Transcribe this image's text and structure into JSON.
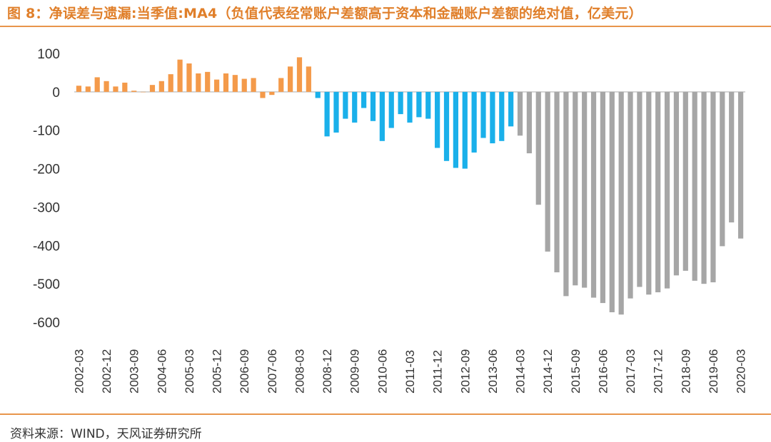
{
  "header": {
    "title": "图 8：净误差与遗漏:当季值:MA4（负值代表经常账户差额高于资本和金融账户差额的绝对值，亿美元）"
  },
  "footer": {
    "source": "资料来源：WIND，天风证券研究所"
  },
  "colors": {
    "accent": "#e8954b",
    "positive": "#f49a4a",
    "negative_mid": "#1ab0ea",
    "negative_late": "#a6a6a6"
  },
  "chart_data": {
    "type": "bar",
    "title": "",
    "xlabel": "",
    "ylabel": "",
    "ylim": [
      -600,
      100
    ],
    "yticks": [
      100,
      0,
      -100,
      -200,
      -300,
      -400,
      -500,
      -600
    ],
    "grid": false,
    "legend": "none",
    "categories": [
      "2002-03",
      "2002-06",
      "2002-09",
      "2002-12",
      "2003-03",
      "2003-06",
      "2003-09",
      "2003-12",
      "2004-03",
      "2004-06",
      "2004-09",
      "2004-12",
      "2005-03",
      "2005-06",
      "2005-09",
      "2005-12",
      "2006-03",
      "2006-06",
      "2006-09",
      "2006-12",
      "2007-03",
      "2007-06",
      "2007-09",
      "2007-12",
      "2008-03",
      "2008-06",
      "2008-09",
      "2008-12",
      "2009-03",
      "2009-06",
      "2009-09",
      "2009-12",
      "2010-03",
      "2010-06",
      "2010-09",
      "2010-12",
      "2011-03",
      "2011-06",
      "2011-09",
      "2011-12",
      "2012-03",
      "2012-06",
      "2012-09",
      "2012-12",
      "2013-03",
      "2013-06",
      "2013-09",
      "2013-12",
      "2014-03",
      "2014-06",
      "2014-09",
      "2014-12",
      "2015-03",
      "2015-06",
      "2015-09",
      "2015-12",
      "2016-03",
      "2016-06",
      "2016-09",
      "2016-12",
      "2017-03",
      "2017-06",
      "2017-09",
      "2017-12",
      "2018-03",
      "2018-06",
      "2018-09",
      "2018-12",
      "2019-03",
      "2019-06",
      "2019-09",
      "2019-12",
      "2020-03"
    ],
    "values": [
      16,
      14,
      38,
      28,
      14,
      24,
      3,
      0,
      18,
      28,
      46,
      84,
      74,
      48,
      52,
      32,
      48,
      44,
      34,
      36,
      -16,
      -8,
      36,
      66,
      90,
      66,
      -16,
      -116,
      -106,
      -70,
      -80,
      -42,
      -76,
      -128,
      -94,
      -58,
      -80,
      -66,
      -70,
      -146,
      -180,
      -198,
      -200,
      -158,
      -120,
      -134,
      -128,
      -90,
      -114,
      -160,
      -294,
      -416,
      -470,
      -532,
      -504,
      -510,
      -536,
      -550,
      -574,
      -580,
      -538,
      -508,
      -528,
      -522,
      -512,
      -478,
      -466,
      -492,
      -500,
      -496,
      -402,
      -340,
      -382
    ],
    "bar_colors": [
      "#f49a4a",
      "#f49a4a",
      "#f49a4a",
      "#f49a4a",
      "#f49a4a",
      "#f49a4a",
      "#f49a4a",
      "#f49a4a",
      "#f49a4a",
      "#f49a4a",
      "#f49a4a",
      "#f49a4a",
      "#f49a4a",
      "#f49a4a",
      "#f49a4a",
      "#f49a4a",
      "#f49a4a",
      "#f49a4a",
      "#f49a4a",
      "#f49a4a",
      "#f49a4a",
      "#f49a4a",
      "#f49a4a",
      "#f49a4a",
      "#f49a4a",
      "#f49a4a",
      "#1ab0ea",
      "#1ab0ea",
      "#1ab0ea",
      "#1ab0ea",
      "#1ab0ea",
      "#1ab0ea",
      "#1ab0ea",
      "#1ab0ea",
      "#1ab0ea",
      "#1ab0ea",
      "#1ab0ea",
      "#1ab0ea",
      "#1ab0ea",
      "#1ab0ea",
      "#1ab0ea",
      "#1ab0ea",
      "#1ab0ea",
      "#1ab0ea",
      "#1ab0ea",
      "#1ab0ea",
      "#1ab0ea",
      "#1ab0ea",
      "#a6a6a6",
      "#a6a6a6",
      "#a6a6a6",
      "#a6a6a6",
      "#a6a6a6",
      "#a6a6a6",
      "#a6a6a6",
      "#a6a6a6",
      "#a6a6a6",
      "#a6a6a6",
      "#a6a6a6",
      "#a6a6a6",
      "#a6a6a6",
      "#a6a6a6",
      "#a6a6a6",
      "#a6a6a6",
      "#a6a6a6",
      "#a6a6a6",
      "#a6a6a6",
      "#a6a6a6",
      "#a6a6a6",
      "#a6a6a6",
      "#a6a6a6",
      "#a6a6a6",
      "#a6a6a6"
    ],
    "xtick_labels": [
      "2002-03",
      "2002-12",
      "2003-09",
      "2004-06",
      "2005-03",
      "2005-12",
      "2006-09",
      "2007-06",
      "2008-03",
      "2008-12",
      "2009-09",
      "2010-06",
      "2011-03",
      "2011-12",
      "2012-09",
      "2013-06",
      "2014-03",
      "2014-12",
      "2015-09",
      "2016-06",
      "2017-03",
      "2017-12",
      "2018-09",
      "2019-06",
      "2020-03"
    ]
  }
}
